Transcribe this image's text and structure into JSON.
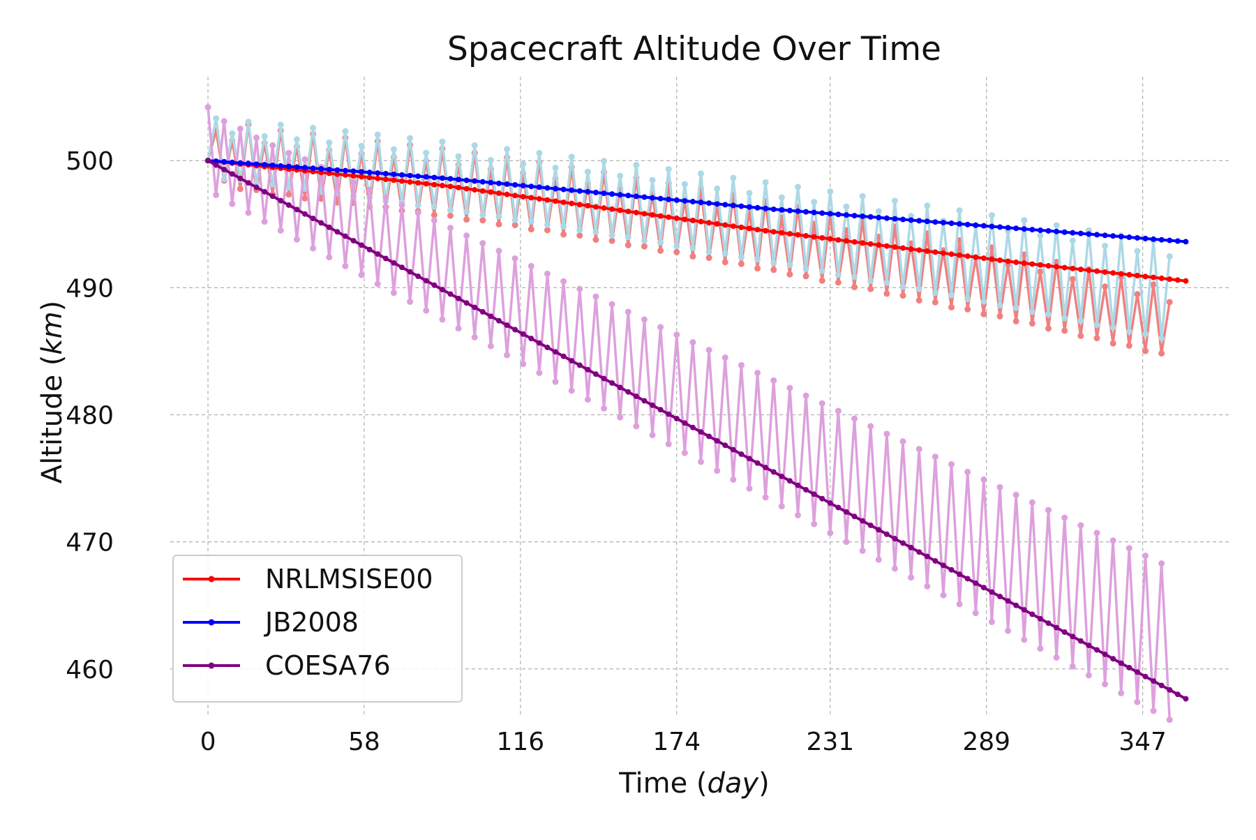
{
  "chart_data": {
    "type": "line",
    "title": "Spacecraft Altitude Over Time",
    "xlabel": {
      "main": "Time (",
      "italic": "day",
      "close": ")"
    },
    "ylabel": {
      "main": "Altitude (",
      "italic": "km",
      "close": ")"
    },
    "xlim": [
      -14,
      380
    ],
    "ylim": [
      456.2,
      506.6
    ],
    "xticks": [
      0,
      58,
      116,
      174,
      231,
      289,
      347
    ],
    "yticks": [
      460,
      470,
      480,
      490,
      500
    ],
    "grid": true,
    "legend_position": "lower-left",
    "x": [
      0,
      3,
      6,
      9,
      12,
      15,
      18,
      21,
      24,
      27,
      30,
      33,
      36,
      39,
      42,
      45,
      48,
      51,
      54,
      57,
      60,
      63,
      66,
      69,
      72,
      75,
      78,
      81,
      84,
      87,
      90,
      93,
      96,
      99,
      102,
      105,
      108,
      111,
      114,
      117,
      120,
      123,
      126,
      129,
      132,
      135,
      138,
      141,
      144,
      147,
      150,
      153,
      156,
      159,
      162,
      165,
      168,
      171,
      174,
      177,
      180,
      183,
      186,
      189,
      192,
      195,
      198,
      201,
      204,
      207,
      210,
      213,
      216,
      219,
      222,
      225,
      228,
      231,
      234,
      237,
      240,
      243,
      246,
      249,
      252,
      255,
      258,
      261,
      264,
      267,
      270,
      273,
      276,
      279,
      282,
      285,
      288,
      291,
      294,
      297,
      300,
      303,
      306,
      309,
      312,
      315,
      318,
      321,
      324,
      327,
      330,
      333,
      336,
      339,
      342,
      345,
      348,
      351,
      354,
      357,
      360,
      363
    ],
    "series": [
      {
        "name": "NRLMSISE00",
        "color": "#ff0000",
        "mean": [
          500.0,
          499.93,
          499.87,
          499.8,
          499.73,
          499.67,
          499.6,
          499.53,
          499.47,
          499.4,
          499.33,
          499.27,
          499.2,
          499.13,
          499.07,
          499.0,
          498.93,
          498.87,
          498.8,
          498.73,
          498.67,
          498.6,
          498.53,
          498.46,
          498.39,
          498.32,
          498.25,
          498.18,
          498.11,
          498.04,
          497.97,
          497.88,
          497.79,
          497.7,
          497.61,
          497.52,
          497.43,
          497.34,
          497.25,
          497.16,
          497.08,
          496.99,
          496.9,
          496.81,
          496.72,
          496.63,
          496.54,
          496.45,
          496.36,
          496.27,
          496.18,
          496.09,
          496.0,
          495.91,
          495.82,
          495.73,
          495.64,
          495.55,
          495.46,
          495.37,
          495.29,
          495.2,
          495.11,
          495.02,
          494.93,
          494.84,
          494.75,
          494.66,
          494.57,
          494.48,
          494.4,
          494.32,
          494.24,
          494.16,
          494.08,
          494.0,
          493.92,
          493.84,
          493.76,
          493.68,
          493.6,
          493.52,
          493.44,
          493.36,
          493.28,
          493.2,
          493.12,
          493.04,
          492.96,
          492.88,
          492.8,
          492.72,
          492.64,
          492.56,
          492.48,
          492.4,
          492.32,
          492.24,
          492.16,
          492.08,
          492.0,
          491.93,
          491.86,
          491.79,
          491.72,
          491.65,
          491.58,
          491.51,
          491.44,
          491.37,
          491.3,
          491.23,
          491.16,
          491.09,
          491.02,
          490.95,
          490.88,
          490.81,
          490.74,
          490.67,
          490.6,
          490.53
        ],
        "raw_color": "#f08080",
        "raw": [
          500.0,
          502.35,
          498.43,
          501.56,
          497.77,
          502.85,
          497.69,
          501.37,
          497.34,
          502.36,
          497.33,
          501.09,
          497.03,
          502.08,
          497.0,
          500.82,
          496.71,
          501.8,
          496.68,
          500.54,
          496.39,
          501.52,
          496.35,
          500.26,
          496.06,
          501.23,
          496.02,
          499.97,
          495.72,
          500.93,
          495.67,
          499.66,
          495.36,
          500.6,
          495.3,
          499.32,
          494.99,
          500.25,
          494.93,
          498.97,
          494.6,
          499.87,
          494.53,
          498.59,
          494.19,
          499.48,
          494.11,
          498.19,
          493.78,
          499.08,
          493.69,
          497.78,
          493.35,
          498.66,
          493.25,
          497.35,
          492.91,
          498.22,
          492.8,
          496.91,
          492.46,
          497.77,
          492.35,
          496.46,
          492.01,
          497.3,
          491.87,
          495.99,
          491.52,
          496.83,
          491.4,
          495.53,
          491.05,
          496.35,
          490.91,
          495.03,
          490.55,
          495.84,
          490.41,
          494.52,
          490.05,
          495.33,
          489.9,
          494.01,
          489.53,
          494.81,
          489.38,
          493.48,
          489.0,
          494.27,
          488.85,
          492.94,
          488.46,
          493.73,
          488.3,
          492.39,
          487.92,
          493.17,
          487.75,
          491.83,
          487.36,
          492.61,
          487.19,
          491.26,
          486.79,
          492.03,
          486.62,
          490.68,
          486.21,
          491.45,
          486.03,
          490.09,
          485.62,
          490.86,
          485.44,
          489.49,
          485.02,
          490.25,
          484.83,
          488.87
        ]
      },
      {
        "name": "JB2008",
        "color": "#0000ff",
        "mean": [
          500.0,
          499.95,
          499.91,
          499.86,
          499.81,
          499.77,
          499.72,
          499.68,
          499.63,
          499.58,
          499.54,
          499.49,
          499.44,
          499.4,
          499.35,
          499.3,
          499.26,
          499.21,
          499.17,
          499.12,
          499.07,
          499.02,
          498.97,
          498.92,
          498.87,
          498.82,
          498.77,
          498.72,
          498.67,
          498.62,
          498.57,
          498.51,
          498.45,
          498.39,
          498.33,
          498.27,
          498.21,
          498.15,
          498.09,
          498.03,
          497.97,
          497.91,
          497.85,
          497.79,
          497.73,
          497.67,
          497.61,
          497.55,
          497.49,
          497.43,
          497.37,
          497.31,
          497.25,
          497.19,
          497.13,
          497.07,
          497.01,
          496.95,
          496.89,
          496.83,
          496.77,
          496.71,
          496.65,
          496.59,
          496.53,
          496.47,
          496.41,
          496.35,
          496.29,
          496.23,
          496.17,
          496.12,
          496.07,
          496.02,
          495.97,
          495.92,
          495.87,
          495.82,
          495.77,
          495.72,
          495.67,
          495.62,
          495.57,
          495.52,
          495.47,
          495.42,
          495.37,
          495.32,
          495.27,
          495.22,
          495.17,
          495.12,
          495.07,
          495.02,
          494.97,
          494.92,
          494.87,
          494.82,
          494.77,
          494.72,
          494.67,
          494.62,
          494.57,
          494.52,
          494.47,
          494.42,
          494.37,
          494.32,
          494.27,
          494.22,
          494.17,
          494.12,
          494.07,
          494.02,
          493.97,
          493.92,
          493.87,
          493.82,
          493.77,
          493.72,
          493.67,
          493.62
        ],
        "raw_color": "#add8e6",
        "raw": [
          500.0,
          503.32,
          498.55,
          502.14,
          498.49,
          503.05,
          498.22,
          501.91,
          498.13,
          502.82,
          497.89,
          501.67,
          497.79,
          502.57,
          497.55,
          501.42,
          497.45,
          502.31,
          497.2,
          501.16,
          497.1,
          502.04,
          496.84,
          500.89,
          496.74,
          501.77,
          496.48,
          500.61,
          496.37,
          501.49,
          496.11,
          500.33,
          495.99,
          501.2,
          495.73,
          500.04,
          495.61,
          500.9,
          495.34,
          499.74,
          495.21,
          500.6,
          494.94,
          499.43,
          494.81,
          500.29,
          494.54,
          499.12,
          494.4,
          499.97,
          494.12,
          498.8,
          493.98,
          499.65,
          493.7,
          498.47,
          493.55,
          499.32,
          493.27,
          498.14,
          493.12,
          498.98,
          492.83,
          497.8,
          492.68,
          498.64,
          492.39,
          497.45,
          492.23,
          498.29,
          491.94,
          497.1,
          491.78,
          497.93,
          491.48,
          496.74,
          491.31,
          497.57,
          491.02,
          496.38,
          490.85,
          497.2,
          490.54,
          496.01,
          490.38,
          496.83,
          490.07,
          495.64,
          489.9,
          496.46,
          489.59,
          495.26,
          489.41,
          496.08,
          489.1,
          494.88,
          488.92,
          495.7,
          488.6,
          494.49,
          488.42,
          495.31,
          488.1,
          494.1,
          487.91,
          494.91,
          487.59,
          493.7,
          487.4,
          494.51,
          487.07,
          493.29,
          486.88,
          494.1,
          486.55,
          492.88,
          486.35,
          493.68,
          486.02,
          492.46
        ]
      },
      {
        "name": "COESA76",
        "color": "#800080",
        "mean": [
          500.0,
          499.65,
          499.3,
          498.95,
          498.6,
          498.25,
          497.9,
          497.55,
          497.2,
          496.85,
          496.5,
          496.15,
          495.8,
          495.45,
          495.1,
          494.75,
          494.4,
          494.05,
          493.7,
          493.35,
          493.0,
          492.65,
          492.3,
          491.95,
          491.6,
          491.25,
          490.9,
          490.55,
          490.2,
          489.85,
          489.5,
          489.15,
          488.8,
          488.45,
          488.1,
          487.75,
          487.4,
          487.05,
          486.7,
          486.35,
          486.0,
          485.65,
          485.3,
          484.95,
          484.6,
          484.25,
          483.9,
          483.55,
          483.2,
          482.85,
          482.5,
          482.15,
          481.8,
          481.45,
          481.1,
          480.75,
          480.4,
          480.05,
          479.7,
          479.35,
          479.0,
          478.65,
          478.3,
          477.95,
          477.6,
          477.25,
          476.9,
          476.55,
          476.2,
          475.85,
          475.5,
          475.15,
          474.8,
          474.45,
          474.1,
          473.75,
          473.4,
          473.05,
          472.7,
          472.35,
          472.0,
          471.65,
          471.3,
          470.95,
          470.6,
          470.25,
          469.9,
          469.55,
          469.2,
          468.85,
          468.5,
          468.15,
          467.8,
          467.45,
          467.1,
          466.75,
          466.4,
          466.05,
          465.7,
          465.35,
          465.0,
          464.65,
          464.3,
          463.95,
          463.6,
          463.25,
          462.9,
          462.55,
          462.2,
          461.85,
          461.5,
          461.15,
          460.8,
          460.45,
          460.1,
          459.75,
          459.4,
          459.05,
          458.7,
          458.35,
          458.0,
          457.65
        ],
        "raw_color": "#dda0dd",
        "raw": [
          504.2,
          497.3,
          503.1,
          496.6,
          502.5,
          495.9,
          501.8,
          495.2,
          501.2,
          494.5,
          500.6,
          493.8,
          500.1,
          493.1,
          499.5,
          492.4,
          498.9,
          491.7,
          498.3,
          491.0,
          497.7,
          490.3,
          497.1,
          489.6,
          496.5,
          488.9,
          495.9,
          488.2,
          495.3,
          487.5,
          494.7,
          486.8,
          494.1,
          486.1,
          493.5,
          485.4,
          492.9,
          484.7,
          492.3,
          484.0,
          491.7,
          483.3,
          491.1,
          482.6,
          490.5,
          481.9,
          489.9,
          481.2,
          489.3,
          480.5,
          488.7,
          479.8,
          488.1,
          479.1,
          487.5,
          478.4,
          486.9,
          477.7,
          486.3,
          477.0,
          485.7,
          476.3,
          485.1,
          475.6,
          484.5,
          474.9,
          483.9,
          474.2,
          483.3,
          473.5,
          482.7,
          472.8,
          482.1,
          472.1,
          481.5,
          471.4,
          480.9,
          470.7,
          480.3,
          470.0,
          479.7,
          469.3,
          479.1,
          468.6,
          478.5,
          467.9,
          477.9,
          467.2,
          477.3,
          466.5,
          476.7,
          465.8,
          476.1,
          465.1,
          475.5,
          464.4,
          474.9,
          463.7,
          474.3,
          463.0,
          473.7,
          462.3,
          473.1,
          461.6,
          472.5,
          460.9,
          471.9,
          460.2,
          471.3,
          459.5,
          470.7,
          458.8,
          470.1,
          458.1,
          469.5,
          457.4,
          468.9,
          456.7,
          468.3,
          456.0
        ]
      }
    ]
  }
}
